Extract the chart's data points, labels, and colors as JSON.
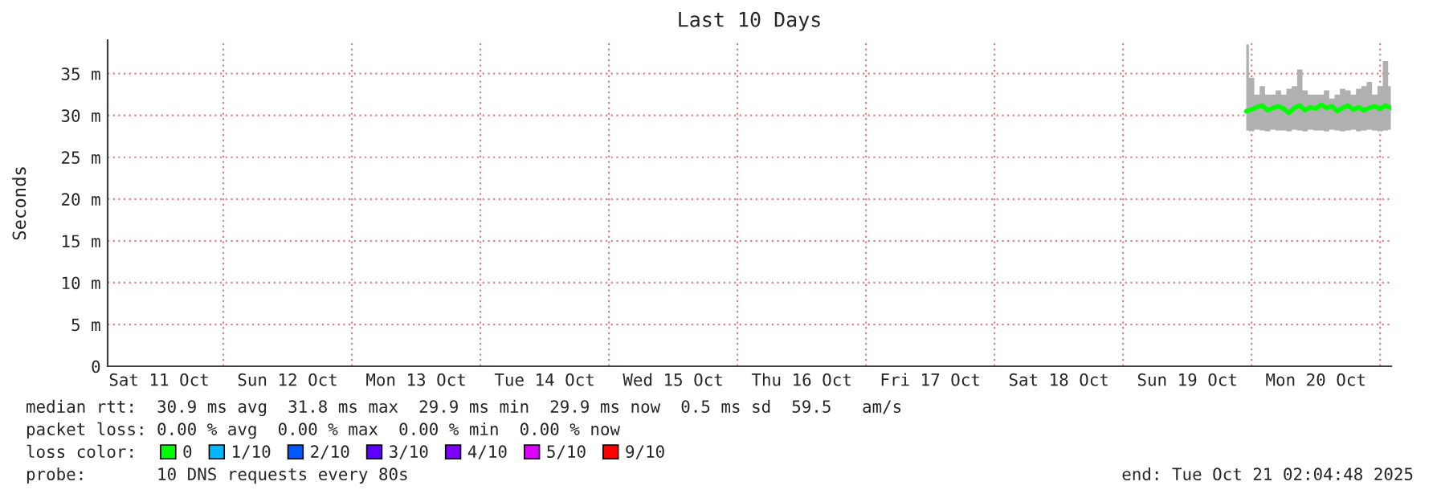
{
  "chart_data": {
    "type": "line",
    "title": "Last 10 Days",
    "ylabel": "Seconds",
    "legend_title": "loss color:",
    "x": [
      "2025-10-19T23:00",
      "2025-10-20T00:00",
      "2025-10-20T01:00",
      "2025-10-20T02:00",
      "2025-10-20T03:00",
      "2025-10-20T04:00",
      "2025-10-20T05:00",
      "2025-10-20T06:00",
      "2025-10-20T07:00",
      "2025-10-20T08:00",
      "2025-10-20T09:00",
      "2025-10-20T10:00",
      "2025-10-20T11:00",
      "2025-10-20T12:00",
      "2025-10-20T13:00",
      "2025-10-20T14:00",
      "2025-10-20T15:00",
      "2025-10-20T16:00",
      "2025-10-20T17:00",
      "2025-10-20T18:00",
      "2025-10-20T19:00",
      "2025-10-20T20:00",
      "2025-10-20T21:00",
      "2025-10-20T22:00",
      "2025-10-20T23:00",
      "2025-10-21T00:00",
      "2025-10-21T01:00",
      "2025-10-21T02:00"
    ],
    "series": [
      {
        "name": "0",
        "color": "#00ff00",
        "values": [
          30.5,
          30.7,
          31,
          31.2,
          30.6,
          30.9,
          31.1,
          30.8,
          30.3,
          30.9,
          31.2,
          30.6,
          31,
          30.8,
          31.3,
          30.9,
          31.1,
          30.5,
          30.9,
          31.2,
          30.7,
          31,
          30.6,
          30.9,
          31.1,
          30.8,
          31.2,
          30.9
        ],
        "lower": [
          28.2,
          28.1,
          28.3,
          28.2,
          28.1,
          28.3,
          28.2,
          28.2,
          28.1,
          28.3,
          28.2,
          28.1,
          28.3,
          28.2,
          28.2,
          28.1,
          28.3,
          28.2,
          28.1,
          28.2,
          28.3,
          28.1,
          28.2,
          28.3,
          28.2,
          28.1,
          28.2,
          28.3
        ],
        "upper": [
          38.5,
          34.5,
          32.5,
          33.5,
          32.5,
          32.5,
          33,
          32.5,
          33.2,
          33.5,
          35.5,
          33,
          32.5,
          32.5,
          32.5,
          33,
          32,
          32.5,
          33.2,
          33,
          32.5,
          33.2,
          33.5,
          34,
          32.5,
          33.5,
          36.5,
          33.5
        ]
      },
      {
        "name": "1/10",
        "color": "#00b8ff",
        "values": [
          null,
          null,
          null,
          null,
          null,
          null,
          null,
          null,
          null,
          null,
          null,
          null,
          null,
          null,
          null,
          null,
          null,
          null,
          null,
          null,
          null,
          null,
          null,
          null,
          null,
          null,
          null,
          null
        ]
      },
      {
        "name": "2/10",
        "color": "#0059ff",
        "values": [
          null,
          null,
          null,
          null,
          null,
          null,
          null,
          null,
          null,
          null,
          null,
          null,
          null,
          null,
          null,
          null,
          null,
          null,
          null,
          null,
          null,
          null,
          null,
          null,
          null,
          null,
          null,
          null
        ]
      },
      {
        "name": "3/10",
        "color": "#5e00ff",
        "values": [
          null,
          null,
          null,
          null,
          null,
          null,
          null,
          null,
          null,
          null,
          null,
          null,
          null,
          null,
          null,
          null,
          null,
          null,
          null,
          null,
          null,
          null,
          null,
          null,
          null,
          null,
          null,
          null
        ]
      },
      {
        "name": "4/10",
        "color": "#7e00ff",
        "values": [
          null,
          null,
          null,
          null,
          null,
          null,
          null,
          null,
          null,
          null,
          null,
          null,
          null,
          null,
          null,
          null,
          null,
          null,
          null,
          null,
          null,
          null,
          null,
          null,
          null,
          null,
          null,
          null
        ]
      },
      {
        "name": "5/10",
        "color": "#dd00ff",
        "values": [
          null,
          null,
          null,
          null,
          null,
          null,
          null,
          null,
          null,
          null,
          null,
          null,
          null,
          null,
          null,
          null,
          null,
          null,
          null,
          null,
          null,
          null,
          null,
          null,
          null,
          null,
          null,
          null
        ]
      },
      {
        "name": "9/10",
        "color": "#ff0000",
        "values": [
          null,
          null,
          null,
          null,
          null,
          null,
          null,
          null,
          null,
          null,
          null,
          null,
          null,
          null,
          null,
          null,
          null,
          null,
          null,
          null,
          null,
          null,
          null,
          null,
          null,
          null,
          null,
          null
        ]
      }
    ],
    "xlim": [
      "2025-10-11T02:24",
      "2025-10-21T02:04"
    ],
    "xticks": [
      {
        "value": "2025-10-11T12:00",
        "label": "Sat 11 Oct"
      },
      {
        "value": "2025-10-12T12:00",
        "label": "Sun 12 Oct"
      },
      {
        "value": "2025-10-13T12:00",
        "label": "Mon 13 Oct"
      },
      {
        "value": "2025-10-14T12:00",
        "label": "Tue 14 Oct"
      },
      {
        "value": "2025-10-15T12:00",
        "label": "Wed 15 Oct"
      },
      {
        "value": "2025-10-16T12:00",
        "label": "Thu 16 Oct"
      },
      {
        "value": "2025-10-17T12:00",
        "label": "Fri 17 Oct"
      },
      {
        "value": "2025-10-18T12:00",
        "label": "Sat 18 Oct"
      },
      {
        "value": "2025-10-19T12:00",
        "label": "Sun 19 Oct"
      },
      {
        "value": "2025-10-20T12:00",
        "label": "Mon 20 Oct"
      }
    ],
    "ylim": [
      0,
      39
    ],
    "yticks": [
      0,
      {
        "value": 5,
        "label": "5 m"
      },
      {
        "value": 10,
        "label": "10 m"
      },
      {
        "value": 15,
        "label": "15 m"
      },
      {
        "value": 20,
        "label": "20 m"
      },
      {
        "value": 25,
        "label": "25 m"
      },
      {
        "value": 30,
        "label": "30 m"
      },
      {
        "value": 35,
        "label": "35 m"
      }
    ],
    "grid": true,
    "legend": "bottom",
    "marker": "none",
    "line_style": "solid",
    "annotations": [
      "median rtt:  30.9 ms avg  31.8 ms max  29.9 ms min  29.9 ms now  0.5 ms sd  59.5   am/s",
      "packet loss: 0.00 % avg  0.00 % max  0.00 % min  0.00 % now",
      "probe:       10 DNS requests every 80s",
      "end: Tue Oct 21 02:04:48 2025"
    ]
  }
}
